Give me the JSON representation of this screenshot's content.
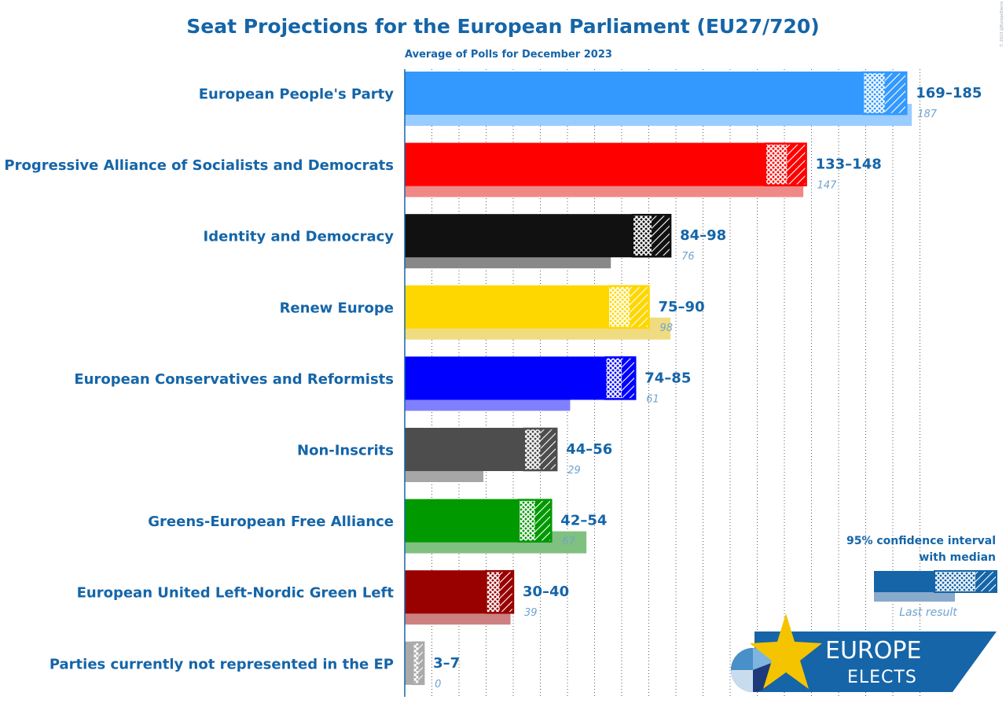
{
  "chart_data": {
    "type": "bar",
    "title": "Seat Projections for the European Parliament (EU27/720)",
    "subtitle": "Average of Polls for December 2023",
    "xlim": [
      0,
      190
    ],
    "grid": true,
    "series": [
      {
        "categories": [
          "European People's Party",
          "Progressive Alliance of Socialists and Democrats",
          "Identity and Democracy",
          "Renew Europe",
          "European Conservatives and Reformists",
          "Non-Inscrits",
          "Greens-European Free Alliance",
          "European United Left-Nordic Green Left",
          "Parties currently not represented in the EP"
        ],
        "ci_low": [
          169,
          133,
          84,
          75,
          74,
          44,
          42,
          30,
          3
        ],
        "median": [
          177,
          141,
          91,
          83,
          80,
          50,
          48,
          35,
          5
        ],
        "ci_high": [
          185,
          148,
          98,
          90,
          85,
          56,
          54,
          40,
          7
        ],
        "range_labels": [
          "169–185",
          "133–148",
          "84–98",
          "75–90",
          "74–85",
          "44–56",
          "42–54",
          "30–40",
          "3–7"
        ],
        "last_result": [
          187,
          147,
          76,
          98,
          61,
          29,
          67,
          39,
          0
        ],
        "last_labels": [
          "187",
          "147",
          "76",
          "98",
          "61",
          "29",
          "67",
          "39",
          "0"
        ],
        "colors": [
          "#3399ff",
          "#ff0000",
          "#111111",
          "#ffd700",
          "#0000ff",
          "#4d4d4d",
          "#009900",
          "#990000",
          "#aaaaaa"
        ],
        "last_colors": [
          "#99ccff",
          "#f08888",
          "#888888",
          "#f0dc80",
          "#8080ff",
          "#a6a6a6",
          "#80c080",
          "#cc8080",
          "#d5d5d5"
        ]
      }
    ]
  },
  "legend": {
    "ci_line1": "95% confidence interval",
    "ci_line2": "with median",
    "last_result": "Last result",
    "color": "#1565a8",
    "last_color": "#88aacc"
  },
  "logo": {
    "line1": "EUROPE",
    "line2": "ELECTS"
  },
  "copyright": "© 2023 @EuropeElects"
}
